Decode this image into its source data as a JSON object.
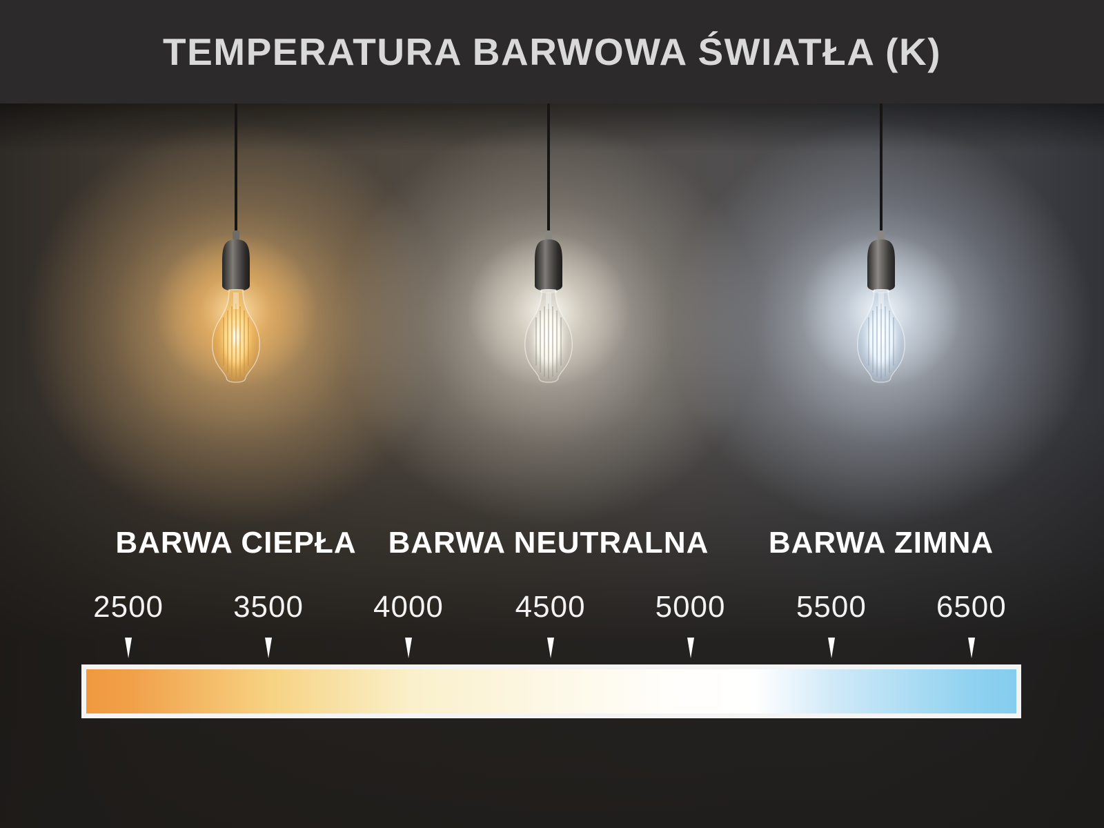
{
  "header": {
    "title": "TEMPERATURA BARWOWA ŚWIATŁA (K)"
  },
  "bulbs": [
    {
      "name": "warm",
      "label": "BARWA CIEPŁA",
      "colors": {
        "room_glow_inner": "rgba(242,189,115,0.85)",
        "room_glow_mid": "rgba(186,148,98,0.40)",
        "halo_inner": "rgba(255,230,175,0.95)",
        "halo_outer": "rgba(240,180,98,0.55)",
        "halo_fade": "rgba(240,180,98,0)",
        "glass_core": "#fff8df",
        "glass_mid": "rgba(253,206,115,0.92)",
        "glass_edge": "rgba(224,158,62,0.30)",
        "glass_fade": "rgba(224,158,62,0.06)",
        "filament_core": "#ffffff",
        "filament_mid": "rgba(255,225,155,0.92)",
        "filament_fade": "rgba(255,225,155,0)",
        "filament_lines": "rgba(200,142,58,0.60)",
        "ring": "#f0c96d"
      }
    },
    {
      "name": "neutral",
      "label": "BARWA NEUTRALNA",
      "colors": {
        "room_glow_inner": "rgba(233,227,216,0.80)",
        "room_glow_mid": "rgba(175,168,157,0.38)",
        "halo_inner": "rgba(255,253,247,0.95)",
        "halo_outer": "rgba(232,225,212,0.50)",
        "halo_fade": "rgba(232,225,212,0)",
        "glass_core": "#ffffff",
        "glass_mid": "rgba(248,244,235,0.92)",
        "glass_edge": "rgba(190,185,175,0.35)",
        "glass_fade": "rgba(190,185,175,0.06)",
        "filament_core": "#ffffff",
        "filament_mid": "rgba(255,252,244,0.92)",
        "filament_fade": "rgba(255,252,244,0)",
        "filament_lines": "rgba(150,145,135,0.55)",
        "ring": "#f5f2e8"
      }
    },
    {
      "name": "cold",
      "label": "BARWA ZIMNA",
      "colors": {
        "room_glow_inner": "rgba(226,234,244,0.80)",
        "room_glow_mid": "rgba(162,170,182,0.38)",
        "halo_inner": "rgba(248,252,255,0.95)",
        "halo_outer": "rgba(216,228,240,0.50)",
        "halo_fade": "rgba(216,228,240,0)",
        "glass_core": "#ffffff",
        "glass_mid": "rgba(238,246,252,0.92)",
        "glass_edge": "rgba(170,190,210,0.35)",
        "glass_fade": "rgba(170,190,210,0.06)",
        "filament_core": "#ffffff",
        "filament_mid": "rgba(240,248,255,0.92)",
        "filament_fade": "rgba(240,248,255,0)",
        "filament_lines": "rgba(140,160,180,0.55)",
        "ring": "#eef4fa"
      }
    }
  ],
  "scale": {
    "ticks": [
      {
        "label": "2500",
        "pos_pct": 5.0
      },
      {
        "label": "3500",
        "pos_pct": 19.9
      },
      {
        "label": "4000",
        "pos_pct": 34.8
      },
      {
        "label": "4500",
        "pos_pct": 49.9
      },
      {
        "label": "5000",
        "pos_pct": 64.8
      },
      {
        "label": "5500",
        "pos_pct": 79.8
      },
      {
        "label": "6500",
        "pos_pct": 94.7
      }
    ],
    "gradient_stops": [
      {
        "color": "#f0993f",
        "pos": 0
      },
      {
        "color": "#f1a14a",
        "pos": 5
      },
      {
        "color": "#f7d383",
        "pos": 20
      },
      {
        "color": "#faf0cb",
        "pos": 35
      },
      {
        "color": "#fdf8e6",
        "pos": 50
      },
      {
        "color": "#fffefb",
        "pos": 63
      },
      {
        "color": "#ffffff",
        "pos": 72
      },
      {
        "color": "#d2eaf8",
        "pos": 80
      },
      {
        "color": "#90d2f0",
        "pos": 95
      },
      {
        "color": "#85ccee",
        "pos": 100
      }
    ]
  }
}
